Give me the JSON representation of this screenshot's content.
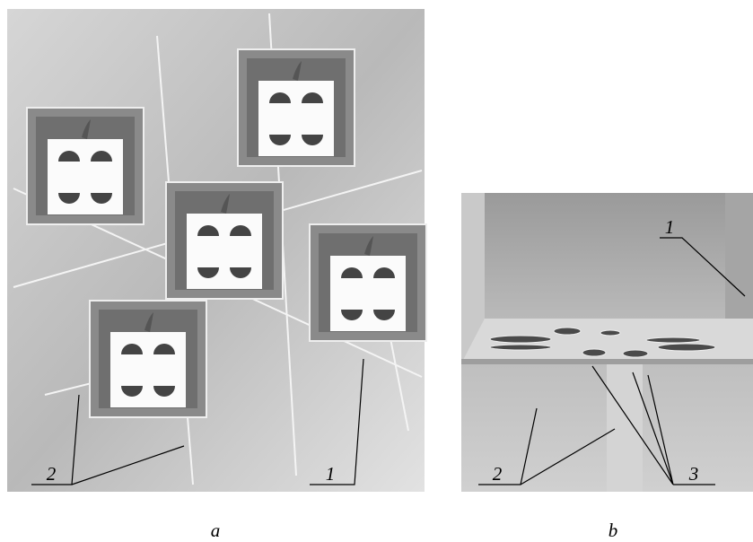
{
  "panels": [
    {
      "caption": "a",
      "callouts": [
        "2",
        "1"
      ]
    },
    {
      "caption": "b",
      "callouts": [
        "1",
        "2",
        "3"
      ]
    }
  ]
}
